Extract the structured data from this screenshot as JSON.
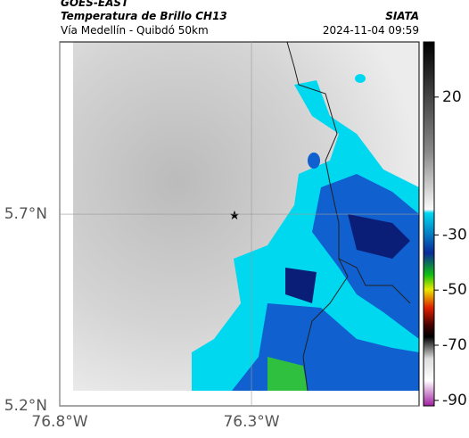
{
  "header": {
    "source": "GOES-EAST",
    "title": "Temperatura de Brillo CH13",
    "subtitle": "Vía Medellín - Quibdó 50km",
    "org": "SIATA",
    "timestamp": "2024-11-04 09:59"
  },
  "map": {
    "xlim": [
      -76.8,
      -75.863
    ],
    "ylim": [
      5.2,
      6.149
    ],
    "xticks": [
      {
        "value": -76.8,
        "label": "76.8°W"
      },
      {
        "value": -76.3,
        "label": "76.3°W"
      }
    ],
    "yticks": [
      {
        "value": 5.7,
        "label": "5.7°N"
      },
      {
        "value": 5.2,
        "label": "5.2°N"
      }
    ]
  },
  "colorbar": {
    "lim": [
      -92,
      40
    ],
    "ticks": [
      20,
      -30,
      -50,
      -70,
      -90
    ]
  }
}
